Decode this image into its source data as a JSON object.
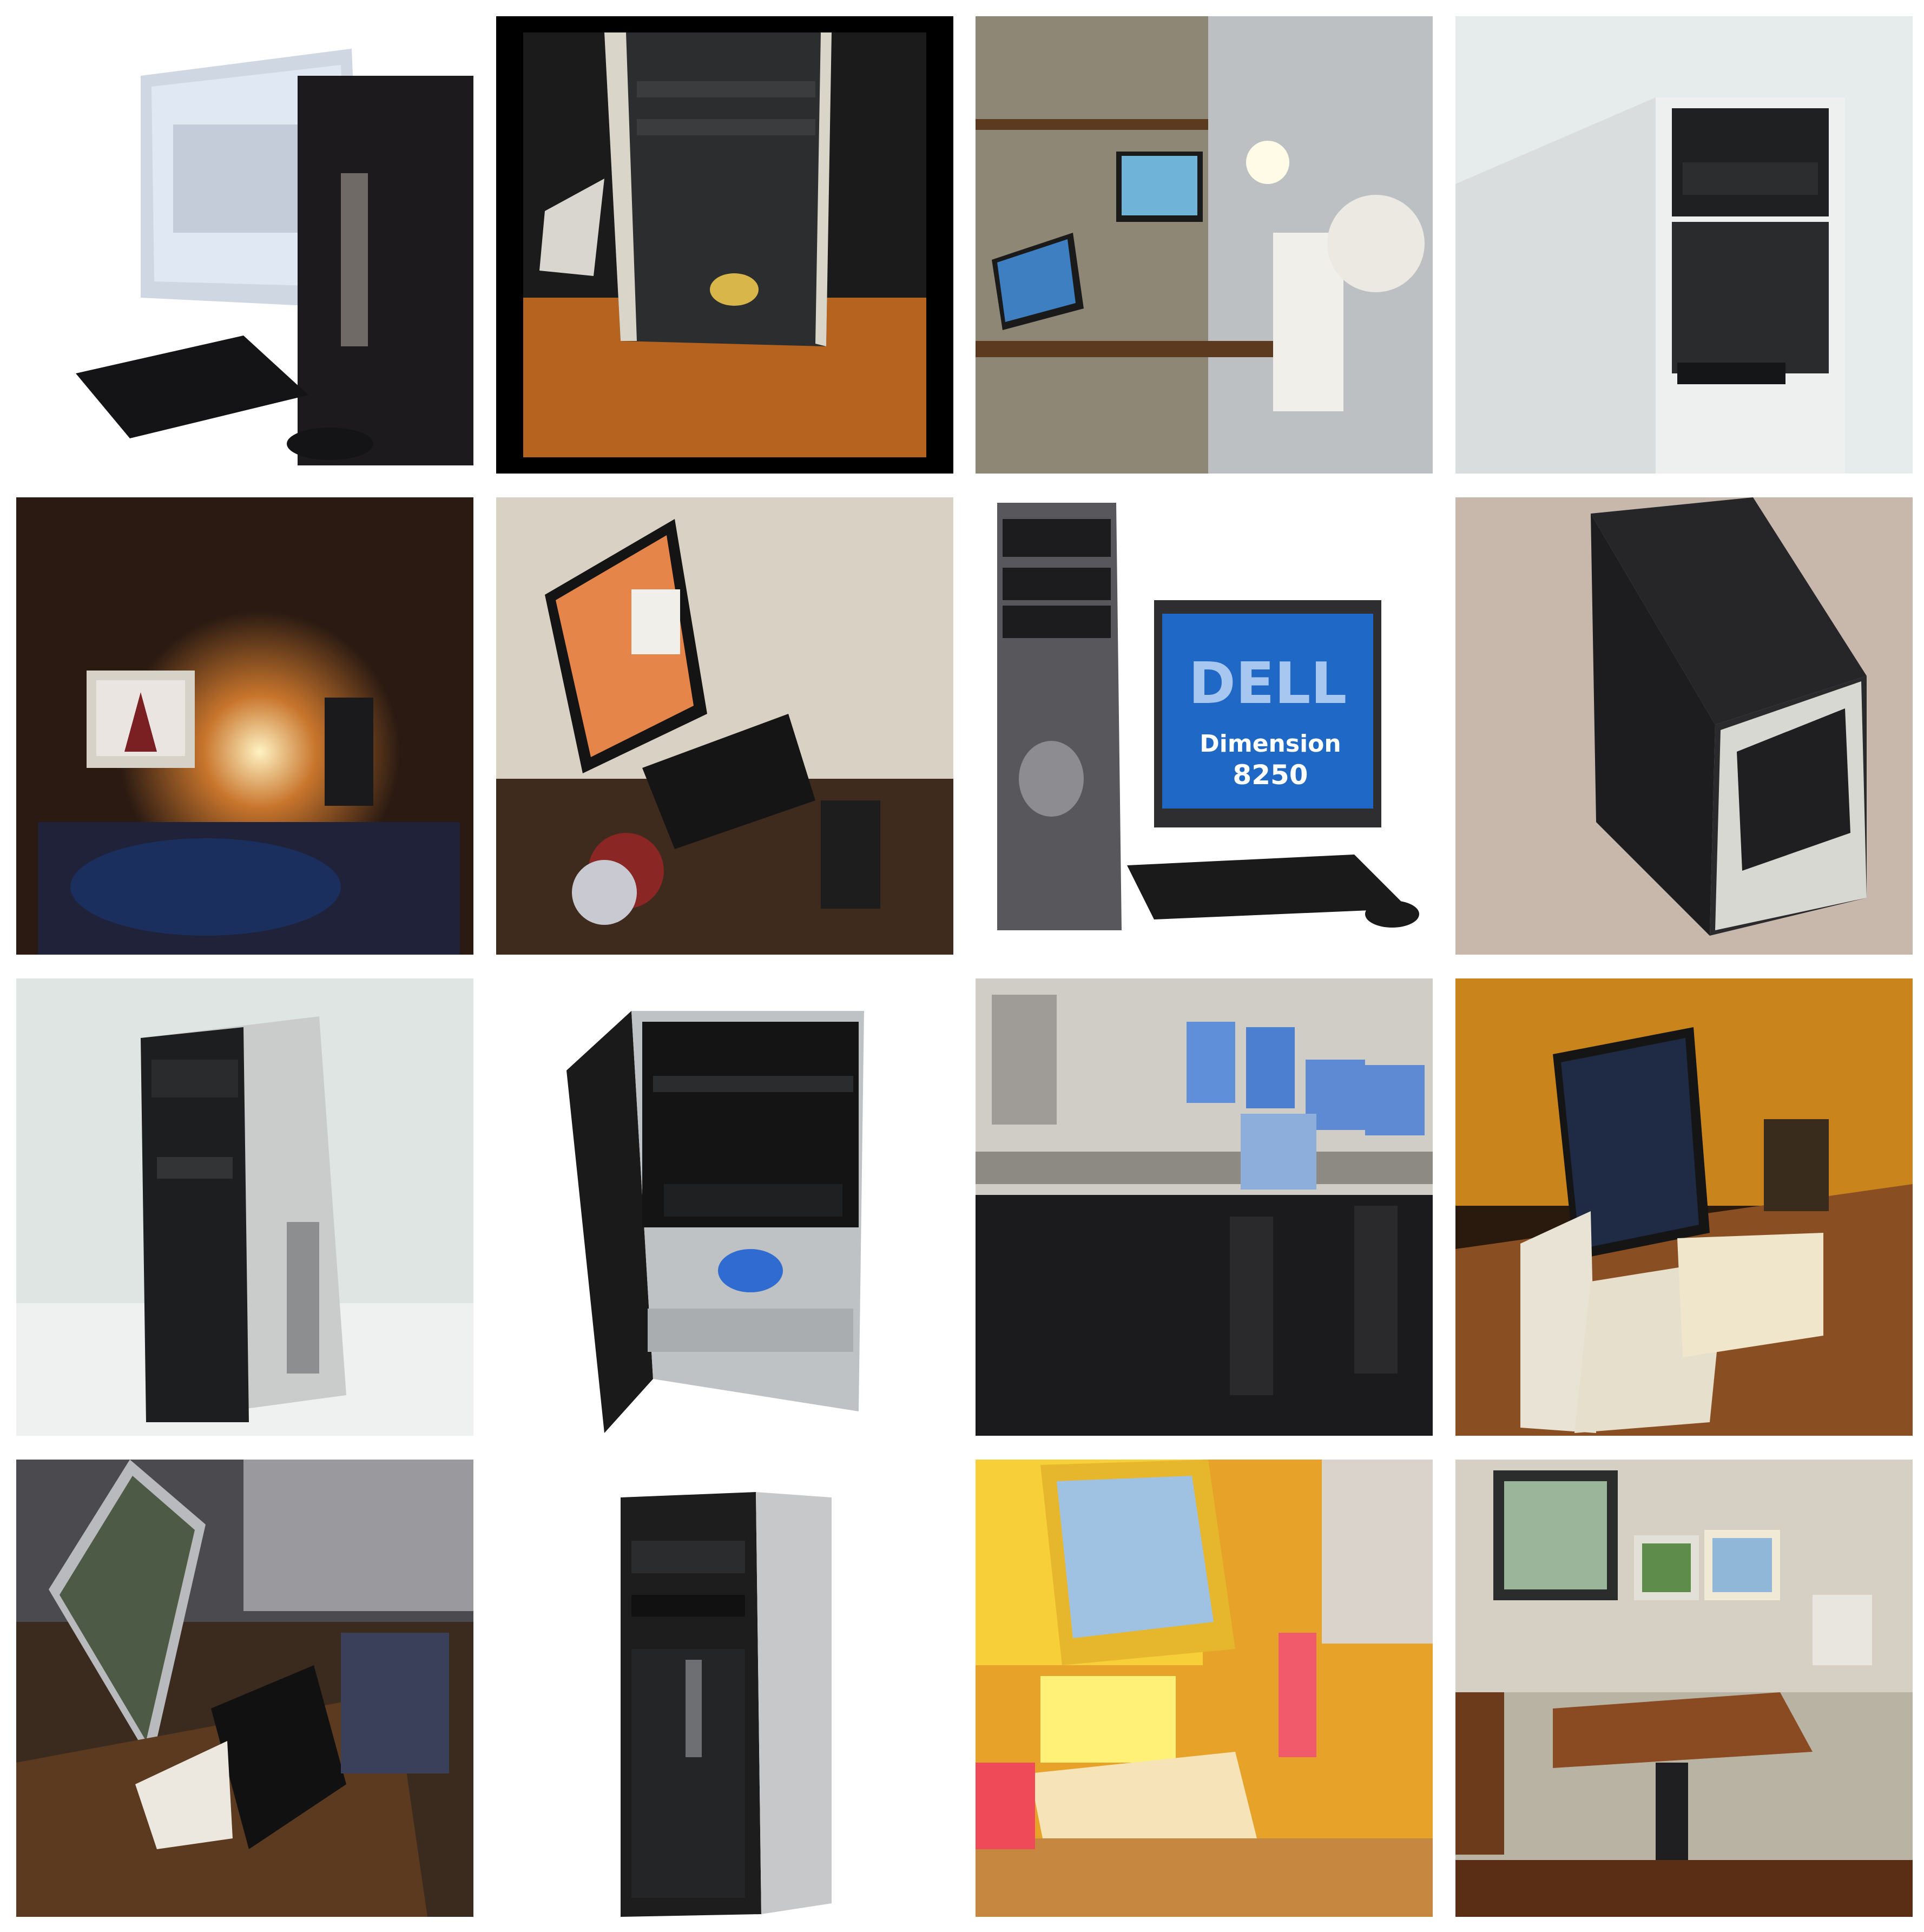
{
  "grid": {
    "rows": 4,
    "columns": 4,
    "background": "#ffffff"
  },
  "tiles": [
    {
      "subject": "tower-with-monitor-keyboard",
      "bg": "#ffffff"
    },
    {
      "subject": "framed-tower-on-wood-floor",
      "bg": "#000000"
    },
    {
      "subject": "desk-with-monitor-and-laptop",
      "bg": "#8b7d6a"
    },
    {
      "subject": "white-tower-closeup",
      "bg": "#e6eceb"
    },
    {
      "subject": "dark-room-crt-and-lamp",
      "bg": "#2a1a12"
    },
    {
      "subject": "desk-with-orange-screen",
      "bg": "#d9d2c4"
    },
    {
      "subject": "dell-dimension-tower-and-monitor",
      "bg": "#ffffff"
    },
    {
      "subject": "black-tower-on-carpet",
      "bg": "#c8b8ab"
    },
    {
      "subject": "silver-black-tower",
      "bg": "#dfe5e3"
    },
    {
      "subject": "silver-tower-product-shot",
      "bg": "#ffffff"
    },
    {
      "subject": "office-with-many-monitors",
      "bg": "#3b3b3d"
    },
    {
      "subject": "desk-with-laptop-and-keyboard",
      "bg": "#3a2410"
    },
    {
      "subject": "cluttered-desk-with-lcd",
      "bg": "#3b2b1e"
    },
    {
      "subject": "hp-tower-product-shot",
      "bg": "#ffffff"
    },
    {
      "subject": "colorful-yellow-desk",
      "bg": "#e7a22a"
    },
    {
      "subject": "room-with-imacs-and-desk",
      "bg": "#b9b3a4"
    }
  ],
  "dell_tile": {
    "brand": "DELL",
    "model_line1": "Dimension",
    "model_line2": "8250"
  }
}
